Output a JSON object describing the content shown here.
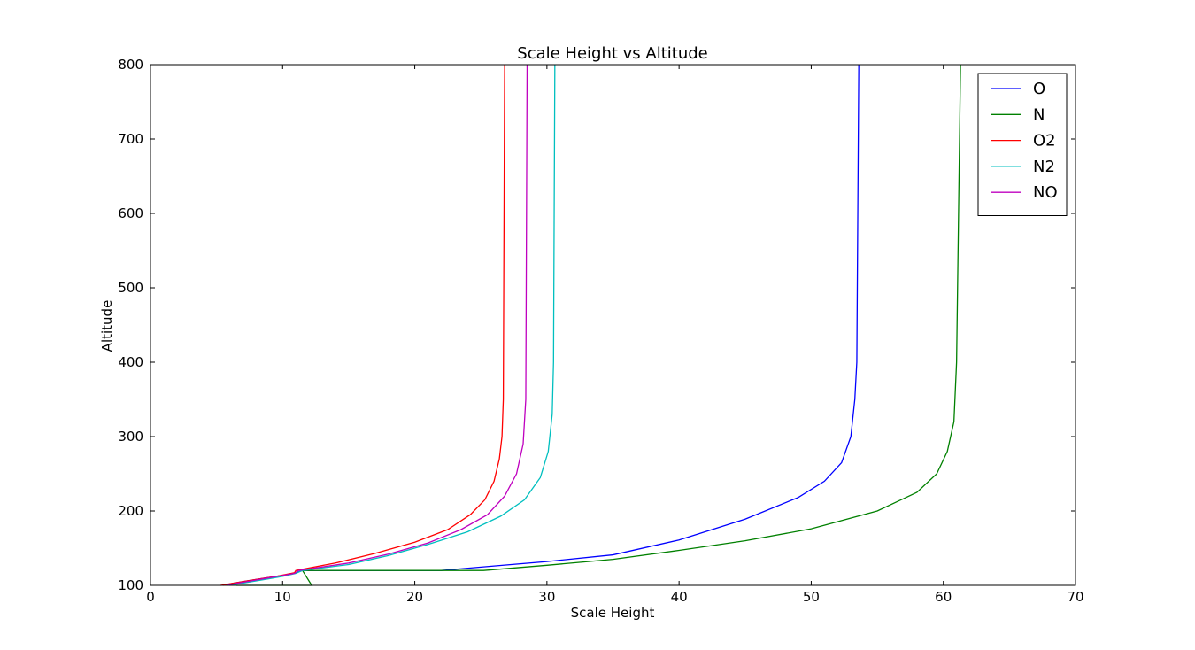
{
  "chart_data": {
    "type": "line",
    "title": "Scale Height vs Altitude",
    "xlabel": "Scale Height",
    "ylabel": "Altitude",
    "xlim": [
      0,
      70
    ],
    "ylim": [
      100,
      800
    ],
    "xticks": [
      0,
      10,
      20,
      30,
      40,
      50,
      60,
      70
    ],
    "yticks": [
      100,
      200,
      300,
      400,
      500,
      600,
      700,
      800
    ],
    "grid": false,
    "legend_position": "top-right",
    "series": [
      {
        "name": "O",
        "color": "#0000ff",
        "points": [
          [
            5.5,
            100
          ],
          [
            6.3,
            103
          ],
          [
            7.3,
            106
          ],
          [
            8.4,
            109
          ],
          [
            9.5,
            112
          ],
          [
            10.9,
            116
          ],
          [
            11.5,
            120
          ],
          [
            22.0,
            120
          ],
          [
            26,
            126
          ],
          [
            30,
            132
          ],
          [
            35,
            141
          ],
          [
            40,
            161
          ],
          [
            45,
            189
          ],
          [
            49,
            218
          ],
          [
            51,
            240
          ],
          [
            52.3,
            265
          ],
          [
            53,
            300
          ],
          [
            53.3,
            350
          ],
          [
            53.45,
            400
          ],
          [
            53.6,
            800
          ]
        ]
      },
      {
        "name": "N",
        "color": "#008000",
        "points": [
          [
            6.5,
            100
          ],
          [
            12.2,
            100
          ],
          [
            11.5,
            120
          ],
          [
            25.2,
            120
          ],
          [
            30,
            127
          ],
          [
            35,
            135
          ],
          [
            40,
            147
          ],
          [
            45,
            160
          ],
          [
            50,
            176
          ],
          [
            55,
            200
          ],
          [
            58.0,
            225
          ],
          [
            59.5,
            250
          ],
          [
            60.3,
            280
          ],
          [
            60.8,
            320
          ],
          [
            61.0,
            400
          ],
          [
            61.3,
            800
          ]
        ]
      },
      {
        "name": "O2",
        "color": "#ff0000",
        "points": [
          [
            5.3,
            100
          ],
          [
            6.3,
            103
          ],
          [
            7.3,
            106
          ],
          [
            8.4,
            109
          ],
          [
            9.5,
            112
          ],
          [
            10.9,
            117
          ],
          [
            11,
            120
          ],
          [
            14,
            130
          ],
          [
            17,
            143
          ],
          [
            20,
            158
          ],
          [
            22.5,
            175
          ],
          [
            24.2,
            195
          ],
          [
            25.3,
            215
          ],
          [
            26.0,
            240
          ],
          [
            26.4,
            270
          ],
          [
            26.6,
            300
          ],
          [
            26.7,
            350
          ],
          [
            26.8,
            800
          ]
        ]
      },
      {
        "name": "N2",
        "color": "#00bfbf",
        "points": [
          [
            6.0,
            100
          ],
          [
            7.0,
            103
          ],
          [
            8.0,
            106
          ],
          [
            9.0,
            109
          ],
          [
            10.0,
            112
          ],
          [
            11.0,
            116
          ],
          [
            11.5,
            120
          ],
          [
            15,
            128
          ],
          [
            18,
            140
          ],
          [
            21,
            155
          ],
          [
            24,
            172
          ],
          [
            26.5,
            193
          ],
          [
            28.3,
            215
          ],
          [
            29.5,
            245
          ],
          [
            30.1,
            280
          ],
          [
            30.4,
            330
          ],
          [
            30.5,
            400
          ],
          [
            30.6,
            800
          ]
        ]
      },
      {
        "name": "NO",
        "color": "#bf00bf",
        "points": [
          [
            5.8,
            100
          ],
          [
            6.6,
            103
          ],
          [
            7.6,
            106
          ],
          [
            8.6,
            109
          ],
          [
            9.6,
            112
          ],
          [
            10.9,
            116
          ],
          [
            11.2,
            120
          ],
          [
            15,
            130
          ],
          [
            18,
            142
          ],
          [
            21,
            157
          ],
          [
            23.5,
            175
          ],
          [
            25.5,
            195
          ],
          [
            26.8,
            220
          ],
          [
            27.7,
            250
          ],
          [
            28.2,
            290
          ],
          [
            28.4,
            350
          ],
          [
            28.5,
            800
          ]
        ]
      }
    ]
  }
}
